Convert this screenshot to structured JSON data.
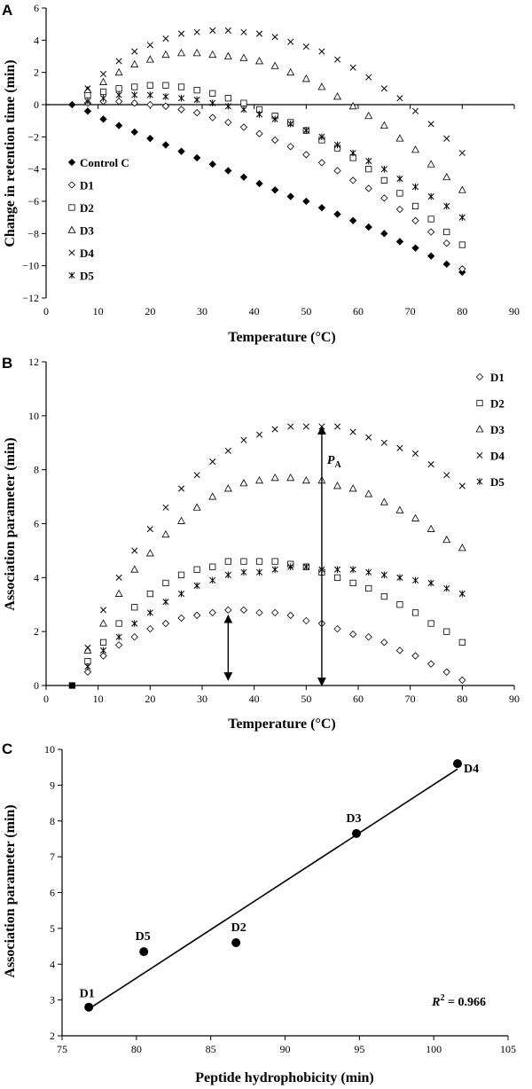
{
  "panel_labels": [
    "A",
    "B",
    "C"
  ],
  "chart_data": [
    {
      "panel": "A",
      "type": "scatter",
      "xlabel": "Temperature (°C)",
      "ylabel": "Change in retention time (min)",
      "xlim": [
        0,
        90
      ],
      "ylim": [
        -12,
        6
      ],
      "xticks": [
        0,
        10,
        20,
        30,
        40,
        50,
        60,
        70,
        80,
        90
      ],
      "yticks": [
        -12,
        -10,
        -8,
        -6,
        -4,
        -2,
        0,
        2,
        4,
        6
      ],
      "legend_position": "left",
      "x": [
        5,
        8,
        11,
        14,
        17,
        20,
        23,
        26,
        29,
        32,
        35,
        38,
        41,
        44,
        47,
        50,
        53,
        56,
        59,
        62,
        65,
        68,
        71,
        74,
        77,
        80
      ],
      "series": [
        {
          "name": "Control C",
          "marker": "diamond-filled",
          "values": [
            0,
            -0.4,
            -0.9,
            -1.3,
            -1.7,
            -2.1,
            -2.5,
            -2.9,
            -3.3,
            -3.7,
            -4.1,
            -4.5,
            -4.9,
            -5.3,
            -5.7,
            -6.0,
            -6.4,
            -6.8,
            -7.2,
            -7.6,
            -8.0,
            -8.5,
            -8.9,
            -9.4,
            -9.9,
            -10.4
          ]
        },
        {
          "name": "D1",
          "marker": "diamond-open",
          "values": [
            null,
            0.1,
            0.2,
            0.2,
            0.1,
            0.0,
            -0.1,
            -0.3,
            -0.5,
            -0.8,
            -1.1,
            -1.4,
            -1.8,
            -2.2,
            -2.6,
            -3.1,
            -3.6,
            -4.1,
            -4.7,
            -5.2,
            -5.8,
            -6.5,
            -7.2,
            -7.9,
            -8.6,
            -10.2
          ]
        },
        {
          "name": "D2",
          "marker": "square-open",
          "values": [
            null,
            0.6,
            0.8,
            1.0,
            1.1,
            1.2,
            1.2,
            1.1,
            0.9,
            0.7,
            0.4,
            0.1,
            -0.3,
            -0.7,
            -1.1,
            -1.6,
            -2.2,
            -2.7,
            -3.3,
            -4.0,
            -4.7,
            -5.5,
            -6.3,
            -7.1,
            -7.9,
            -8.7
          ]
        },
        {
          "name": "D3",
          "marker": "triangle-open",
          "values": [
            null,
            0.9,
            1.4,
            2.0,
            2.5,
            2.8,
            3.1,
            3.2,
            3.2,
            3.1,
            3.0,
            2.9,
            2.7,
            2.4,
            2.0,
            1.6,
            1.1,
            0.5,
            -0.1,
            -0.7,
            -1.3,
            -2.1,
            -2.8,
            -3.7,
            -4.5,
            -5.3
          ]
        },
        {
          "name": "D4",
          "marker": "x",
          "values": [
            null,
            1.0,
            1.9,
            2.7,
            3.3,
            3.7,
            4.1,
            4.4,
            4.5,
            4.6,
            4.6,
            4.5,
            4.4,
            4.2,
            3.9,
            3.6,
            3.3,
            2.8,
            2.3,
            1.7,
            1.0,
            0.4,
            -0.4,
            -1.2,
            -2.1,
            -3.0
          ]
        },
        {
          "name": "D5",
          "marker": "asterisk",
          "values": [
            null,
            0.2,
            0.4,
            0.6,
            0.6,
            0.6,
            0.5,
            0.4,
            0.3,
            0.1,
            -0.1,
            -0.3,
            -0.6,
            -0.9,
            -1.2,
            -1.6,
            -2.0,
            -2.5,
            -3.0,
            -3.5,
            -4.0,
            -4.6,
            -5.1,
            -5.7,
            -6.3,
            -7.0
          ]
        }
      ]
    },
    {
      "panel": "B",
      "type": "scatter",
      "xlabel": "Temperature (°C)",
      "ylabel": "Association parameter (min)",
      "xlim": [
        0,
        90
      ],
      "ylim": [
        0,
        12
      ],
      "xticks": [
        0,
        10,
        20,
        30,
        40,
        50,
        60,
        70,
        80,
        90
      ],
      "yticks": [
        0,
        2,
        4,
        6,
        8,
        10,
        12
      ],
      "legend_position": "right",
      "x": [
        5,
        8,
        11,
        14,
        17,
        20,
        23,
        26,
        29,
        32,
        35,
        38,
        41,
        44,
        47,
        50,
        53,
        56,
        59,
        62,
        65,
        68,
        71,
        74,
        77,
        80
      ],
      "reference": {
        "name": "Control C",
        "marker": "square-filled",
        "x": 5,
        "value": 0
      },
      "series": [
        {
          "name": "D1",
          "marker": "diamond-open",
          "values": [
            null,
            0.5,
            1.1,
            1.5,
            1.8,
            2.1,
            2.3,
            2.5,
            2.6,
            2.7,
            2.8,
            2.8,
            2.7,
            2.7,
            2.6,
            2.4,
            2.3,
            2.1,
            1.9,
            1.8,
            1.6,
            1.3,
            1.1,
            0.8,
            0.5,
            0.2
          ]
        },
        {
          "name": "D2",
          "marker": "square-open",
          "values": [
            null,
            0.9,
            1.6,
            2.3,
            2.9,
            3.4,
            3.8,
            4.1,
            4.3,
            4.4,
            4.6,
            4.6,
            4.6,
            4.6,
            4.5,
            4.4,
            4.2,
            4.0,
            3.8,
            3.6,
            3.3,
            3.0,
            2.7,
            2.3,
            2.0,
            1.6
          ]
        },
        {
          "name": "D3",
          "marker": "triangle-open",
          "values": [
            null,
            1.3,
            2.3,
            3.4,
            4.3,
            4.9,
            5.6,
            6.1,
            6.6,
            7.0,
            7.3,
            7.5,
            7.6,
            7.7,
            7.7,
            7.6,
            7.6,
            7.4,
            7.3,
            7.1,
            6.8,
            6.5,
            6.2,
            5.8,
            5.4,
            5.1
          ]
        },
        {
          "name": "D4",
          "marker": "x",
          "values": [
            null,
            1.4,
            2.8,
            4.0,
            5.0,
            5.8,
            6.6,
            7.3,
            7.8,
            8.3,
            8.7,
            9.1,
            9.3,
            9.5,
            9.6,
            9.6,
            9.6,
            9.6,
            9.4,
            9.2,
            9.0,
            8.8,
            8.6,
            8.2,
            7.8,
            7.4
          ]
        },
        {
          "name": "D5",
          "marker": "asterisk",
          "values": [
            null,
            0.7,
            1.3,
            1.8,
            2.3,
            2.7,
            3.1,
            3.4,
            3.7,
            3.9,
            4.1,
            4.2,
            4.2,
            4.3,
            4.4,
            4.4,
            4.3,
            4.3,
            4.3,
            4.2,
            4.1,
            4.0,
            3.9,
            3.8,
            3.6,
            3.4
          ]
        }
      ],
      "annotations": [
        {
          "label_main": "P",
          "label_sub": "A",
          "x": 53,
          "y_from": 0,
          "y_to": 9.6
        },
        {
          "x": 35,
          "y_from": 0.2,
          "y_to": 2.6
        }
      ]
    },
    {
      "panel": "C",
      "type": "scatter",
      "xlabel": "Peptide hydrophobicity (min)",
      "ylabel": "Association parameter (min)",
      "xlim": [
        75,
        105
      ],
      "ylim": [
        2,
        10
      ],
      "xticks": [
        75,
        80,
        85,
        90,
        95,
        100,
        105
      ],
      "yticks": [
        2,
        3,
        4,
        5,
        6,
        7,
        8,
        9,
        10
      ],
      "points": [
        {
          "label": "D1",
          "x": 76.8,
          "y": 2.8
        },
        {
          "label": "D5",
          "x": 80.5,
          "y": 4.35
        },
        {
          "label": "D2",
          "x": 86.7,
          "y": 4.6
        },
        {
          "label": "D3",
          "x": 94.8,
          "y": 7.65
        },
        {
          "label": "D4",
          "x": 101.6,
          "y": 9.6
        }
      ],
      "fit_line": {
        "x": [
          76.8,
          101.6
        ],
        "y": [
          2.75,
          9.45
        ]
      },
      "r2_label": "R² = 0.966"
    }
  ]
}
